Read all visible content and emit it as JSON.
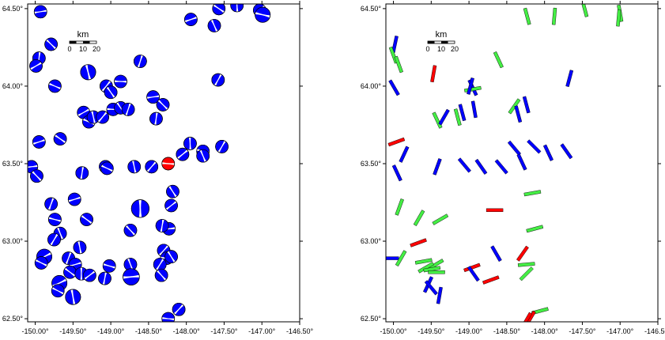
{
  "colors": {
    "fill": "#0000ff",
    "highlight": "#ff0000",
    "green": "#44ee44",
    "frame": "#000000"
  },
  "axes": {
    "lon_range": [
      -150.1,
      -146.5
    ],
    "lat_range": [
      62.48,
      64.53
    ],
    "x_ticks": [
      "-150.00°",
      "-149.50°",
      "-149.00°",
      "-148.50°",
      "-148.00°",
      "-147.50°",
      "-147.00°",
      "-146.50°"
    ],
    "x_tick_values": [
      -150.0,
      -149.5,
      -149.0,
      -148.5,
      -148.0,
      -147.5,
      -147.0,
      -146.5
    ],
    "y_ticks": [
      "62.50°",
      "63.00°",
      "63.50°",
      "64.00°",
      "64.50°"
    ],
    "y_tick_values": [
      62.5,
      63.0,
      63.5,
      64.0,
      64.5
    ]
  },
  "scalebar": {
    "unit": "km",
    "labels": [
      "0",
      "10",
      "20"
    ]
  },
  "left_panel": {
    "beachballs": [
      [
        -149.93,
        64.48,
        1
      ],
      [
        -149.79,
        64.27,
        1
      ],
      [
        -149.95,
        64.18,
        1
      ],
      [
        -149.99,
        64.13,
        1
      ],
      [
        -149.74,
        64.0,
        1
      ],
      [
        -149.3,
        64.09,
        1.2
      ],
      [
        -149.06,
        64.0,
        1
      ],
      [
        -148.87,
        64.03,
        1
      ],
      [
        -149.0,
        63.96,
        1
      ],
      [
        -148.61,
        64.16,
        1
      ],
      [
        -147.94,
        64.43,
        1
      ],
      [
        -147.57,
        64.5,
        1
      ],
      [
        -147.33,
        64.52,
        1
      ],
      [
        -147.03,
        64.49,
        1
      ],
      [
        -146.99,
        64.46,
        1.2
      ],
      [
        -147.63,
        64.39,
        1
      ],
      [
        -147.58,
        64.04,
        1
      ],
      [
        -148.44,
        63.93,
        1
      ],
      [
        -148.31,
        63.88,
        1
      ],
      [
        -148.4,
        63.79,
        1
      ],
      [
        -149.36,
        63.83,
        1
      ],
      [
        -149.29,
        63.77,
        1
      ],
      [
        -149.23,
        63.8,
        1
      ],
      [
        -149.11,
        63.8,
        1
      ],
      [
        -148.97,
        63.85,
        1
      ],
      [
        -148.87,
        63.86,
        1
      ],
      [
        -148.77,
        63.85,
        1
      ],
      [
        -149.95,
        63.64,
        1
      ],
      [
        -149.67,
        63.66,
        1
      ],
      [
        -147.95,
        63.63,
        1
      ],
      [
        -148.05,
        63.56,
        1
      ],
      [
        -147.78,
        63.58,
        1
      ],
      [
        -147.78,
        63.55,
        1
      ],
      [
        -147.53,
        63.61,
        1
      ],
      [
        -150.05,
        63.48,
        1
      ],
      [
        -149.98,
        63.42,
        1
      ],
      [
        -149.38,
        63.44,
        1
      ],
      [
        -149.07,
        63.48,
        1
      ],
      [
        -149.05,
        63.47,
        1
      ],
      [
        -148.69,
        63.48,
        1
      ],
      [
        -148.46,
        63.48,
        1
      ],
      [
        -148.24,
        63.5,
        1,
        "h"
      ],
      [
        -148.18,
        63.32,
        1
      ],
      [
        -149.79,
        63.24,
        1
      ],
      [
        -149.48,
        63.27,
        1
      ],
      [
        -149.32,
        63.14,
        1
      ],
      [
        -148.61,
        63.21,
        1.4
      ],
      [
        -148.2,
        63.23,
        1
      ],
      [
        -149.74,
        63.14,
        1
      ],
      [
        -149.67,
        63.05,
        1
      ],
      [
        -149.75,
        63.01,
        1
      ],
      [
        -148.23,
        63.08,
        1
      ],
      [
        -148.74,
        63.07,
        1
      ],
      [
        -148.32,
        63.1,
        1
      ],
      [
        -149.88,
        62.9,
        1.2
      ],
      [
        -149.92,
        62.86,
        1
      ],
      [
        -149.41,
        62.96,
        1
      ],
      [
        -148.3,
        62.94,
        1
      ],
      [
        -148.26,
        62.89,
        1
      ],
      [
        -148.2,
        62.9,
        1
      ],
      [
        -149.56,
        62.89,
        1
      ],
      [
        -149.47,
        62.85,
        1
      ],
      [
        -149.54,
        62.8,
        1
      ],
      [
        -149.39,
        62.79,
        1
      ],
      [
        -149.28,
        62.78,
        1
      ],
      [
        -149.02,
        62.84,
        1
      ],
      [
        -148.74,
        62.85,
        1
      ],
      [
        -148.35,
        62.85,
        1
      ],
      [
        -148.73,
        62.77,
        1.3
      ],
      [
        -148.33,
        62.78,
        1
      ],
      [
        -149.08,
        62.76,
        1
      ],
      [
        -149.68,
        62.73,
        1.2
      ],
      [
        -149.7,
        62.68,
        1
      ],
      [
        -149.5,
        62.64,
        1.2
      ],
      [
        -148.1,
        62.56,
        1
      ],
      [
        -148.24,
        62.5,
        1
      ]
    ]
  },
  "right_panel": {
    "bars": [
      [
        -149.98,
        64.27,
        "b",
        12
      ],
      [
        -150.0,
        64.2,
        "g",
        -20
      ],
      [
        -149.93,
        64.14,
        "g",
        -20
      ],
      [
        -149.47,
        64.08,
        "r",
        10
      ],
      [
        -148.95,
        63.99,
        "b",
        -25
      ],
      [
        -148.95,
        63.98,
        "g",
        80
      ],
      [
        -149.99,
        63.99,
        "b",
        -30
      ],
      [
        -148.61,
        64.17,
        "g",
        -25
      ],
      [
        -148.23,
        64.45,
        "g",
        -15
      ],
      [
        -147.87,
        64.45,
        "g",
        5
      ],
      [
        -147.47,
        64.5,
        "g",
        -15
      ],
      [
        -147.0,
        64.47,
        "g",
        -10
      ],
      [
        -147.02,
        64.44,
        "g",
        5
      ],
      [
        -147.67,
        64.05,
        "b",
        15
      ],
      [
        -148.24,
        63.88,
        "b",
        -15
      ],
      [
        -148.4,
        63.87,
        "g",
        35
      ],
      [
        -149.15,
        63.8,
        "g",
        -15
      ],
      [
        -149.09,
        63.83,
        "b",
        -15
      ],
      [
        -149.42,
        63.78,
        "g",
        -25
      ],
      [
        -149.33,
        63.8,
        "b",
        30
      ],
      [
        -148.98,
        64.0,
        "b",
        15
      ],
      [
        -148.93,
        63.85,
        "b",
        -10
      ],
      [
        -148.35,
        63.82,
        "b",
        -15
      ],
      [
        -149.96,
        63.64,
        "r",
        70
      ],
      [
        -148.4,
        63.6,
        "b",
        -40
      ],
      [
        -148.14,
        63.61,
        "b",
        -45
      ],
      [
        -147.95,
        63.57,
        "b",
        -25
      ],
      [
        -147.71,
        63.58,
        "b",
        -35
      ],
      [
        -149.86,
        63.56,
        "b",
        25
      ],
      [
        -149.95,
        63.44,
        "b",
        -25
      ],
      [
        -149.42,
        63.48,
        "b",
        20
      ],
      [
        -149.06,
        63.49,
        "b",
        -40
      ],
      [
        -148.84,
        63.48,
        "b",
        -35
      ],
      [
        -148.57,
        63.48,
        "b",
        -40
      ],
      [
        -148.3,
        63.51,
        "b",
        -25
      ],
      [
        -148.16,
        63.31,
        "g",
        80
      ],
      [
        -149.92,
        63.22,
        "g",
        20
      ],
      [
        -149.66,
        63.15,
        "g",
        30
      ],
      [
        -149.38,
        63.14,
        "g",
        60
      ],
      [
        -148.66,
        63.2,
        "r",
        90
      ],
      [
        -148.13,
        63.08,
        "g",
        75
      ],
      [
        -149.67,
        62.99,
        "r",
        70
      ],
      [
        -150.04,
        62.89,
        "b",
        90
      ],
      [
        -149.9,
        62.89,
        "g",
        30
      ],
      [
        -149.6,
        62.87,
        "g",
        80
      ],
      [
        -149.44,
        62.85,
        "g",
        60
      ],
      [
        -149.57,
        62.83,
        "g",
        60
      ],
      [
        -149.49,
        62.82,
        "g",
        80
      ],
      [
        -149.43,
        62.8,
        "g",
        90
      ],
      [
        -148.96,
        62.83,
        "r",
        70
      ],
      [
        -148.29,
        62.92,
        "r",
        35
      ],
      [
        -148.24,
        62.85,
        "g",
        85
      ],
      [
        -148.71,
        62.75,
        "r",
        70
      ],
      [
        -148.24,
        62.79,
        "g",
        45
      ],
      [
        -149.54,
        62.72,
        "b",
        25
      ],
      [
        -149.5,
        62.7,
        "b",
        -40
      ],
      [
        -149.39,
        62.65,
        "b",
        10
      ],
      [
        -148.94,
        62.79,
        "b",
        -35
      ],
      [
        -148.64,
        62.92,
        "b",
        -30
      ],
      [
        -148.06,
        62.55,
        "g",
        75
      ],
      [
        -148.19,
        62.5,
        "r",
        30
      ],
      [
        -148.24,
        62.49,
        "r",
        30
      ]
    ]
  }
}
